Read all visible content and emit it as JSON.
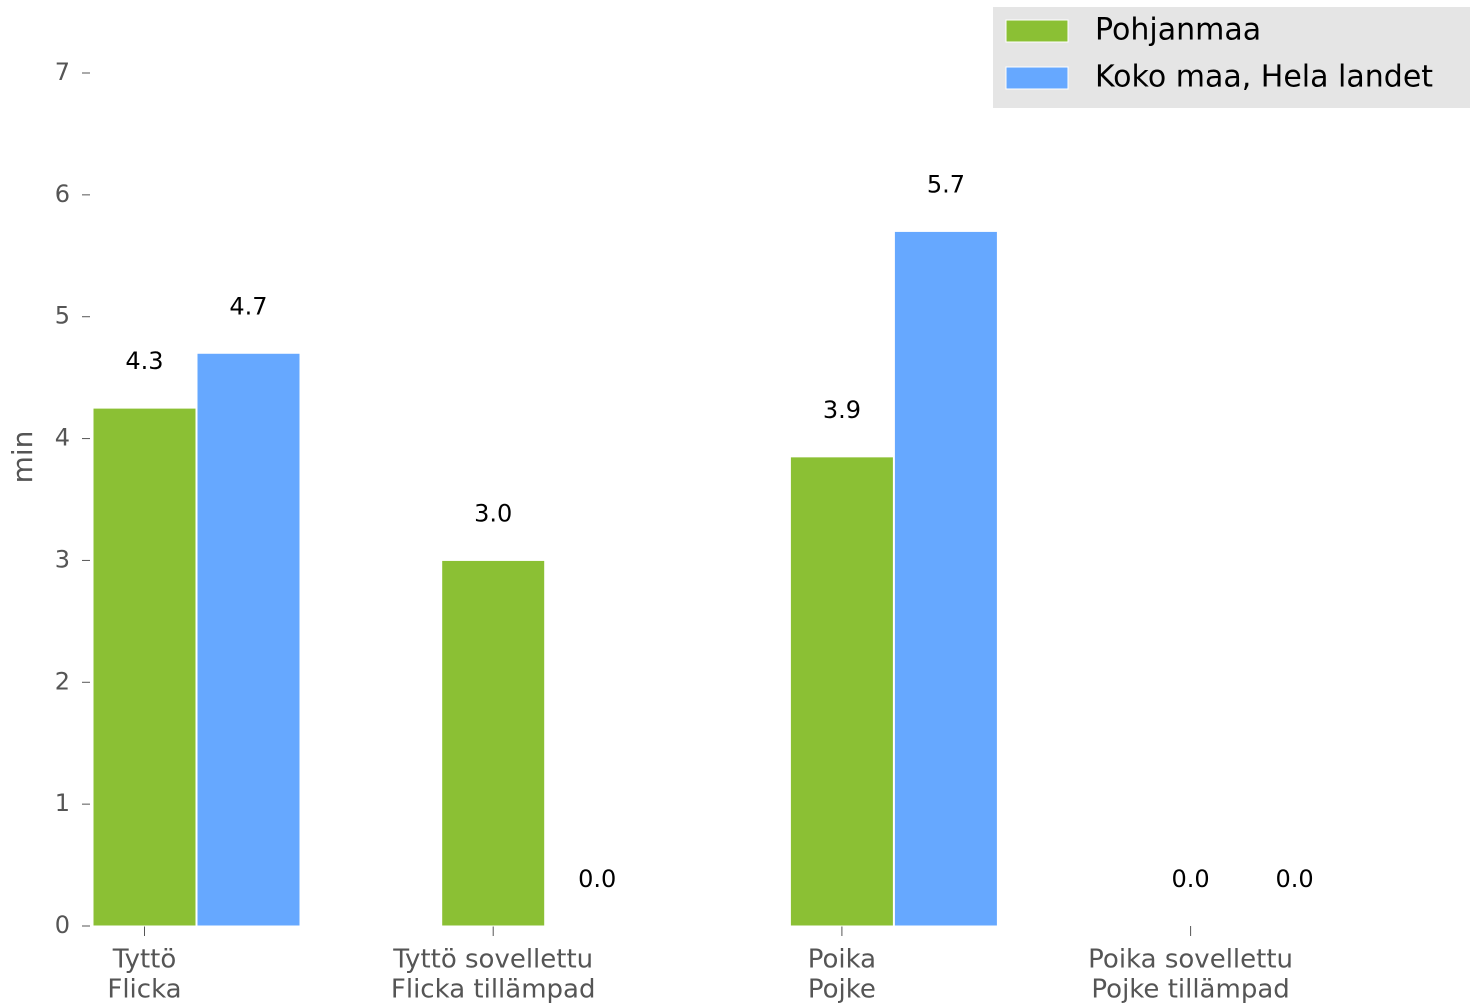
{
  "chart_data": {
    "type": "bar",
    "ylabel": "min",
    "categories": [
      [
        "Tyttö",
        "Flicka"
      ],
      [
        "Tyttö sovellettu",
        "Flicka tillämpad"
      ],
      [
        "Poika",
        "Pojke"
      ],
      [
        "Poika sovellettu",
        "Pojke tillämpad"
      ]
    ],
    "series": [
      {
        "name": "Pohjanmaa",
        "color": "#8bc034",
        "values": [
          4.25,
          3.0,
          3.85,
          0
        ],
        "value_labels": [
          "4.3",
          "3.0",
          "3.9",
          "0.0"
        ]
      },
      {
        "name": "Koko maa, Hela landet",
        "color": "#66a8ff",
        "values": [
          4.7,
          0,
          5.7,
          0
        ],
        "value_labels": [
          "4.7",
          "0.0",
          "5.7",
          "0.0"
        ]
      }
    ],
    "ylim": [
      0,
      7
    ],
    "yticks": [
      0,
      1,
      2,
      3,
      4,
      5,
      6,
      7
    ],
    "legend": "upper right"
  }
}
